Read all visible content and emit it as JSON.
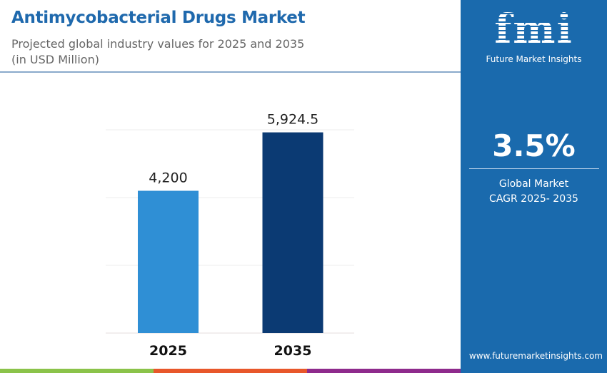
{
  "header": {
    "title": "Antimycobacterial Drugs Market",
    "subtitle": "Projected global industry values for 2025 and 2035",
    "unit": "(in USD Million)"
  },
  "chart_data": {
    "type": "bar",
    "categories": [
      "2025",
      "2035"
    ],
    "values": [
      4200,
      5924.5
    ],
    "data_labels": [
      "4,200",
      "5,924.5"
    ],
    "ylim": [
      0,
      6000
    ],
    "grid": true,
    "colors": [
      "#2f8fd5",
      "#0b3a73"
    ],
    "title": "",
    "xlabel": "",
    "ylabel": ""
  },
  "panel": {
    "logo": "fmi",
    "brand": "Future Market Insights",
    "cagr": "3.5%",
    "cagr_label_1": "Global Market",
    "cagr_label_2": "CAGR 2025- 2035",
    "url": "www.futuremarketinsights.com",
    "color": "#1a6aad"
  },
  "footer_colors": [
    "#8bc34a",
    "#e8572a",
    "#8e2a8c"
  ]
}
